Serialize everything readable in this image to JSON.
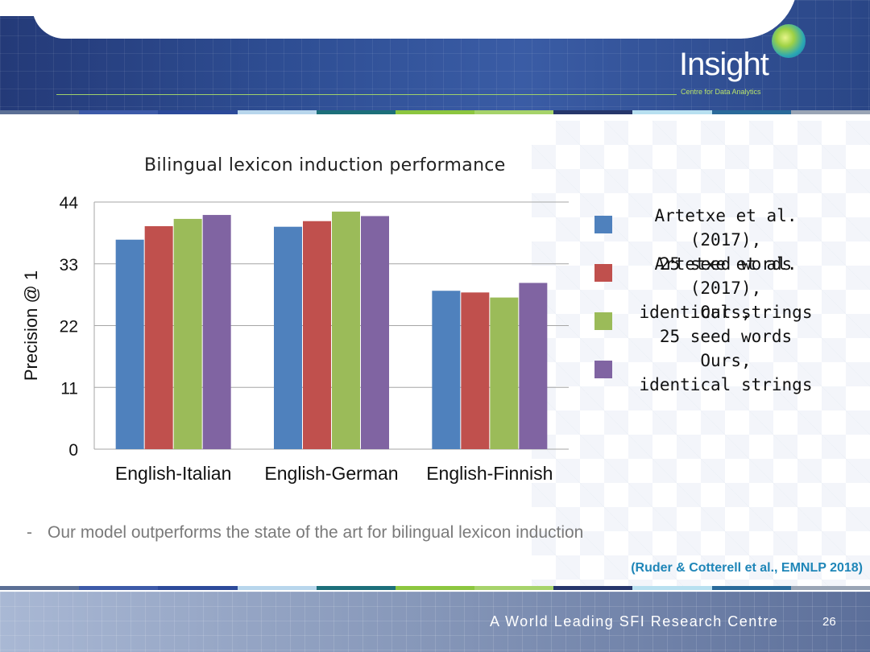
{
  "header": {
    "logo_name": "Insight",
    "logo_subtitle": "Centre for Data Analytics"
  },
  "chart_data": {
    "type": "bar",
    "title": "Bilingual lexicon induction performance",
    "ylabel": "Precision @ 1",
    "xlabel": "",
    "ylim": [
      0,
      44
    ],
    "yticks": [
      "0",
      "11",
      "22",
      "33",
      "44"
    ],
    "categories": [
      "English-Italian",
      "English-German",
      "English-Finnish"
    ],
    "series": [
      {
        "name": "Artetxe et al. (2017),\n25 seed words",
        "color": "#4f81bd",
        "values": [
          37.3,
          39.6,
          28.2
        ]
      },
      {
        "name": "Artetxe et al. (2017),\nidentical strings",
        "color": "#c0504d",
        "values": [
          39.7,
          40.6,
          27.9
        ]
      },
      {
        "name": "Ours,\n25 seed words",
        "color": "#9bbb59",
        "values": [
          41.0,
          42.3,
          27.0
        ]
      },
      {
        "name": "Ours,\nidentical strings",
        "color": "#8064a2",
        "values": [
          41.7,
          41.5,
          29.6
        ]
      }
    ],
    "grid": true,
    "legend_position": "right"
  },
  "bullet": {
    "marker": "-",
    "text": "Our model outperforms the state of the art for bilingual lexicon induction"
  },
  "citation": "(Ruder & Cotterell et al., EMNLP 2018)",
  "footer": {
    "tagline": "A World Leading SFI Research Centre",
    "page_number": "26"
  },
  "stripe_colors": [
    "#5b6f95",
    "#3d5aa8",
    "#2c4a9a",
    "#b8d6ec",
    "#1d6f7a",
    "#8cc63f",
    "#a6d36a",
    "#26366b",
    "#b8e0f0",
    "#2a6a9a",
    "#9aa5b5"
  ]
}
